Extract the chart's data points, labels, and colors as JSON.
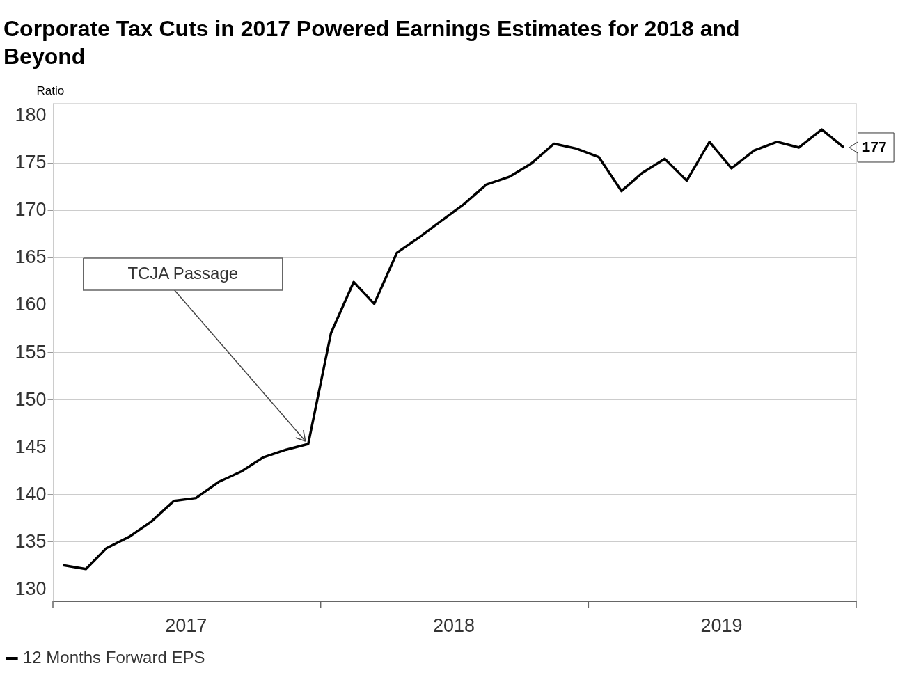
{
  "chart_data": {
    "type": "line",
    "title": "Corporate Tax Cuts in 2017 Powered Earnings Estimates for 2018 and Beyond",
    "ylabel": "Ratio",
    "x": [
      "2017-01-15",
      "2017-02-15",
      "2017-03-15",
      "2017-04-15",
      "2017-05-15",
      "2017-06-15",
      "2017-07-15",
      "2017-08-15",
      "2017-09-15",
      "2017-10-15",
      "2017-11-15",
      "2017-12-15",
      "2018-01-15",
      "2018-02-15",
      "2018-03-15",
      "2018-04-15",
      "2018-05-15",
      "2018-06-15",
      "2018-07-15",
      "2018-08-15",
      "2018-09-15",
      "2018-10-15",
      "2018-11-15",
      "2018-12-15",
      "2019-01-15",
      "2019-02-15",
      "2019-03-15",
      "2019-04-15",
      "2019-05-15",
      "2019-06-15",
      "2019-07-15",
      "2019-08-15",
      "2019-09-15",
      "2019-10-15",
      "2019-11-15",
      "2019-12-15"
    ],
    "series": [
      {
        "name": "12 Months Forward EPS",
        "color": "#000000",
        "values": [
          132.5,
          132.1,
          134.3,
          135.5,
          137.1,
          139.3,
          139.6,
          141.3,
          142.4,
          143.9,
          144.7,
          145.3,
          157.0,
          162.4,
          160.1,
          165.5,
          167.1,
          168.9,
          170.6,
          172.7,
          173.5,
          174.9,
          177.0,
          176.5,
          175.6,
          172.0,
          173.9,
          175.4,
          173.1,
          177.2,
          174.4,
          176.3,
          177.2,
          176.6,
          178.5,
          176.6
        ],
        "value_labels": [
          null,
          null,
          null,
          null,
          null,
          null,
          null,
          null,
          null,
          null,
          null,
          null,
          null,
          null,
          null,
          null,
          null,
          null,
          null,
          null,
          null,
          null,
          null,
          null,
          null,
          null,
          null,
          null,
          null,
          null,
          null,
          null,
          null,
          null,
          null,
          "177"
        ]
      }
    ],
    "xlim": [
      "2017-01-01",
      "2020-01-01"
    ],
    "xticks": [
      {
        "value": "2017-01-01",
        "label": null
      },
      {
        "value": "2017-07-01",
        "label": "2017"
      },
      {
        "value": "2018-01-01",
        "label": null
      },
      {
        "value": "2018-07-01",
        "label": "2018"
      },
      {
        "value": "2019-01-01",
        "label": null
      },
      {
        "value": "2019-07-01",
        "label": "2019"
      },
      {
        "value": "2020-01-01",
        "label": null
      }
    ],
    "ylim": [
      128.7,
      181.3
    ],
    "yticks": [
      130,
      135,
      140,
      145,
      150,
      155,
      160,
      165,
      170,
      175,
      180
    ],
    "annotations": [
      {
        "text": "TCJA Passage",
        "x": "2017-12-15",
        "y": 145.3
      }
    ],
    "grid": "y",
    "legend": "bottom",
    "line_style": "solid",
    "marker": "none"
  }
}
